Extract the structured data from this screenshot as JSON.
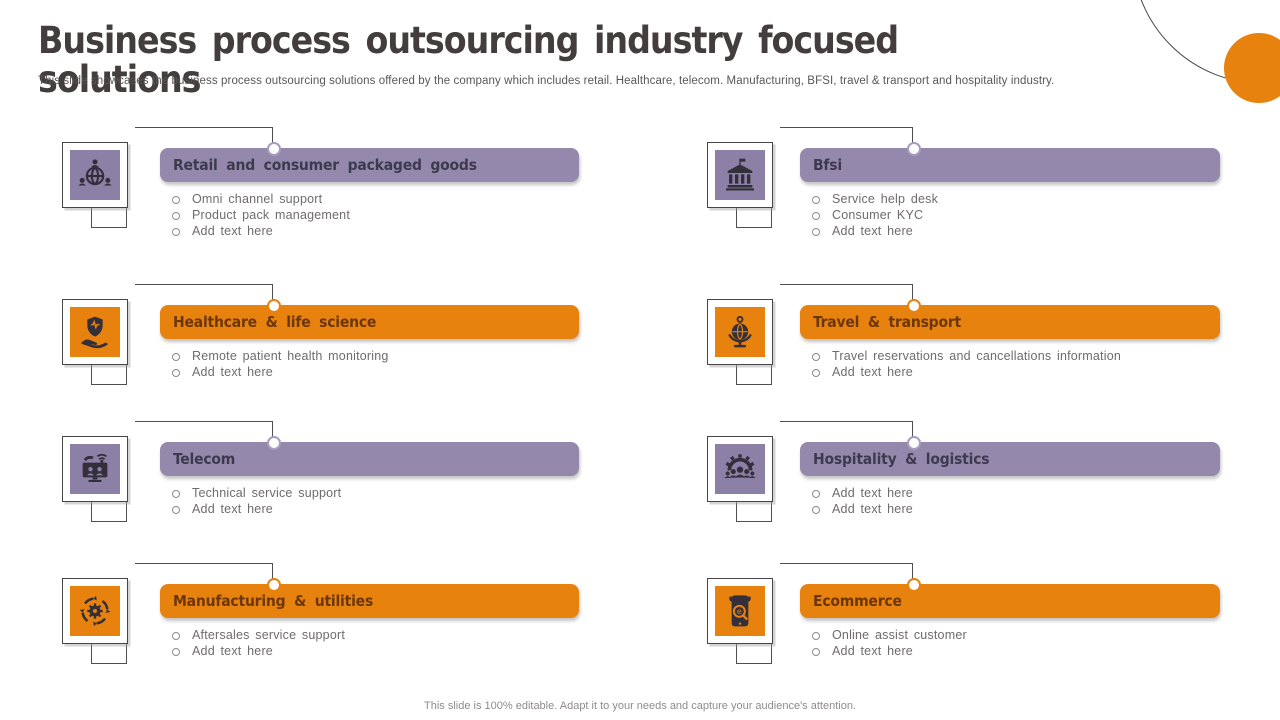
{
  "slide": {
    "title": "Business process outsourcing industry focused solutions",
    "subtitle": "This slide showcases the business process outsourcing solutions offered by the company which includes retail. Healthcare, telecom. Manufacturing, BFSI, travel & transport and hospitality industry.",
    "footer": "This slide is 100% editable. Adapt it to your needs and capture your audience's attention."
  },
  "colors": {
    "orange": "#E8820E",
    "purple_bar": "#9489AD",
    "purple_icon": "#8C80A6",
    "line": "#4F4F4F",
    "icon_glyph": "#332F3B",
    "bullet_text": "#6F6B6B"
  },
  "items": [
    {
      "id": "retail",
      "variant": "purple",
      "icon": "globe-users-icon",
      "title": "Retail and consumer packaged goods",
      "bullets": [
        "Omni channel support",
        "Product pack management",
        "Add text here"
      ]
    },
    {
      "id": "bfsi",
      "variant": "purple",
      "icon": "bank-icon",
      "title": "Bfsi",
      "bullets": [
        "Service help desk",
        "Consumer KYC",
        "Add text here"
      ]
    },
    {
      "id": "healthcare",
      "variant": "orange",
      "icon": "shield-hand-icon",
      "title": "Healthcare & life science",
      "bullets": [
        "Remote patient health monitoring",
        "Add text here"
      ]
    },
    {
      "id": "travel",
      "variant": "orange",
      "icon": "globe-stand-icon",
      "title": "Travel & transport",
      "bullets": [
        "Travel reservations and cancellations information",
        "Add text here"
      ]
    },
    {
      "id": "telecom",
      "variant": "purple",
      "icon": "computer-telecom-icon",
      "title": "Telecom",
      "bullets": [
        "Technical service support",
        "Add text here"
      ]
    },
    {
      "id": "hospitality",
      "variant": "purple",
      "icon": "gear-people-icon",
      "title": "Hospitality & logistics",
      "bullets": [
        "Add text here",
        "Add text here"
      ]
    },
    {
      "id": "manufacturing",
      "variant": "orange",
      "icon": "gear-arrows-icon",
      "title": "Manufacturing & utilities",
      "bullets": [
        "Aftersales service support",
        "Add text here"
      ]
    },
    {
      "id": "ecommerce",
      "variant": "orange",
      "icon": "mobile-shop-icon",
      "title": "Ecommerce",
      "bullets": [
        "Online assist customer",
        "Add text here"
      ]
    }
  ]
}
